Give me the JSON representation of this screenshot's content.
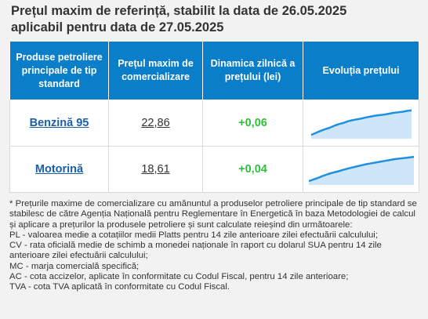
{
  "title_line1": "Prețul maxim de referință, stabilit la data de 26.05.2025",
  "title_line2": "aplicabil pentru data de 27.05.2025",
  "table": {
    "headers": [
      "Produse petroliere principale de tip standard",
      "Prețul maxim de comercializare",
      "Dinamica zilnică a prețului (lei)",
      "Evoluția prețului"
    ],
    "rows": [
      {
        "product": "Benzină 95",
        "price": "22,86",
        "change": "+0,06",
        "trend": [
          0.08,
          0.15,
          0.22,
          0.28,
          0.33,
          0.4,
          0.46,
          0.5,
          0.56,
          0.6,
          0.63,
          0.66,
          0.7,
          0.73,
          0.76,
          0.78,
          0.8,
          0.83,
          0.86,
          0.88,
          0.9,
          0.93,
          0.95
        ]
      },
      {
        "product": "Motorină",
        "price": "18,61",
        "change": "+0,04",
        "trend": [
          0.08,
          0.14,
          0.2,
          0.27,
          0.33,
          0.38,
          0.42,
          0.47,
          0.52,
          0.56,
          0.6,
          0.64,
          0.68,
          0.71,
          0.74,
          0.77,
          0.8,
          0.83,
          0.86,
          0.88,
          0.9,
          0.92,
          0.94
        ]
      }
    ]
  },
  "colors": {
    "header_bg": "#0a7ec8",
    "link": "#1a5fa8",
    "positive": "#2fbf3a",
    "spark_line": "#1e90e0",
    "spark_fill": "#cfe6f8"
  },
  "notes": [
    "* Prețurile maxime de comercializare cu amănuntul a produselor petroliere principale de tip standard se stabilesc de către Agenția Națională pentru Reglementare în Energetică în baza Metodologiei de calcul și aplicare a prețurilor la produsele petroliere și sunt calculate reieșind din următoarele:",
    "PL - valoarea medie a cotațiilor medii Platts pentru 14 zile anterioare zilei efectuării calculului;",
    "CV - rata oficială medie de schimb a monedei naționale în raport cu dolarul SUA pentru 14 zile anterioare zilei efectuării calculului;",
    "MC - marja comercială specifică;",
    "AC - cota accizelor, aplicate în conformitate cu Codul Fiscal, pentru 14 zile anterioare;",
    "TVA - cota TVA aplicată în conformitate cu Codul Fiscal."
  ]
}
